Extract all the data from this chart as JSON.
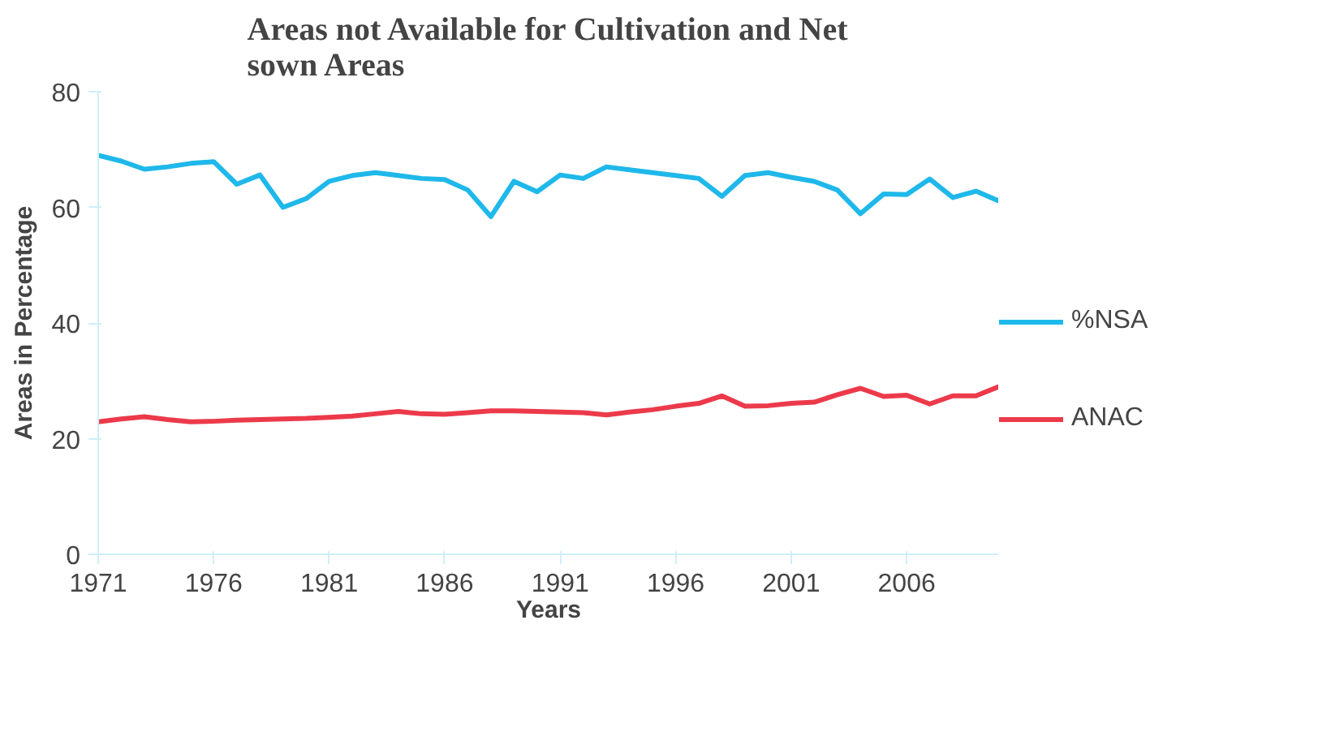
{
  "chart_data": {
    "type": "line",
    "title": "Areas not Available for Cultivation and Net sown Areas",
    "xlabel": "Years",
    "ylabel": "Areas in Percentage",
    "x": [
      1971,
      1972,
      1973,
      1974,
      1975,
      1976,
      1977,
      1978,
      1979,
      1980,
      1981,
      1982,
      1983,
      1984,
      1985,
      1986,
      1987,
      1988,
      1989,
      1990,
      1991,
      1992,
      1993,
      1994,
      1995,
      1996,
      1997,
      1998,
      1999,
      2000,
      2001,
      2002,
      2003,
      2004,
      2005,
      2006,
      2007,
      2008,
      2009,
      2010
    ],
    "series": [
      {
        "name": "%NSA",
        "color": "#1fb8ea",
        "values": [
          69.0,
          68.0,
          66.6,
          67.0,
          67.6,
          67.9,
          64.0,
          65.6,
          60.0,
          61.5,
          64.5,
          65.5,
          66.0,
          65.5,
          65.0,
          64.8,
          63.0,
          58.4,
          64.5,
          62.7,
          65.6,
          65.0,
          67.0,
          66.5,
          66.0,
          65.5,
          65.0,
          61.9,
          65.5,
          66.0,
          65.2,
          64.5,
          63.0,
          58.9,
          62.3,
          62.2,
          64.9,
          61.7,
          62.8,
          61.1
        ]
      },
      {
        "name": "ANAC",
        "color": "#ec3a4a",
        "values": [
          22.9,
          23.4,
          23.8,
          23.3,
          22.9,
          23.0,
          23.2,
          23.3,
          23.4,
          23.5,
          23.7,
          23.9,
          24.3,
          24.7,
          24.3,
          24.2,
          24.5,
          24.8,
          24.8,
          24.7,
          24.6,
          24.5,
          24.1,
          24.6,
          25.0,
          25.6,
          26.1,
          27.4,
          25.6,
          25.7,
          26.1,
          26.3,
          27.6,
          28.7,
          27.3,
          27.5,
          26.0,
          27.4,
          27.4,
          29.0
        ]
      }
    ],
    "xlim": [
      1971,
      2010
    ],
    "xticks": [
      1971,
      1976,
      1981,
      1986,
      1991,
      1996,
      2001,
      2006
    ],
    "ylim": [
      0,
      80
    ],
    "yticks": [
      0,
      20,
      40,
      60,
      80
    ],
    "grid": false,
    "legend": "right",
    "marker": "none",
    "line_style": "solid"
  }
}
